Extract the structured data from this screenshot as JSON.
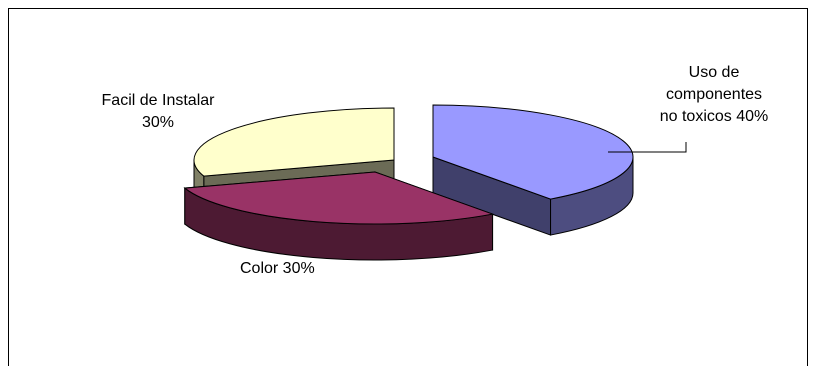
{
  "chart_data": {
    "type": "pie",
    "style": "3d-exploded",
    "categories": [
      "Uso de componentes no toxicos",
      "Color",
      "Facil de Instalar"
    ],
    "values": [
      40,
      30,
      30
    ],
    "colors": [
      "#9999ff",
      "#993366",
      "#ffffcc"
    ],
    "labels": [
      {
        "lines": [
          "Uso de",
          "componentes",
          "no toxicos 40%"
        ]
      },
      {
        "lines": [
          "Color  30%"
        ]
      },
      {
        "lines": [
          "Facil de Instalar",
          "30%"
        ]
      }
    ],
    "legend": "none"
  }
}
